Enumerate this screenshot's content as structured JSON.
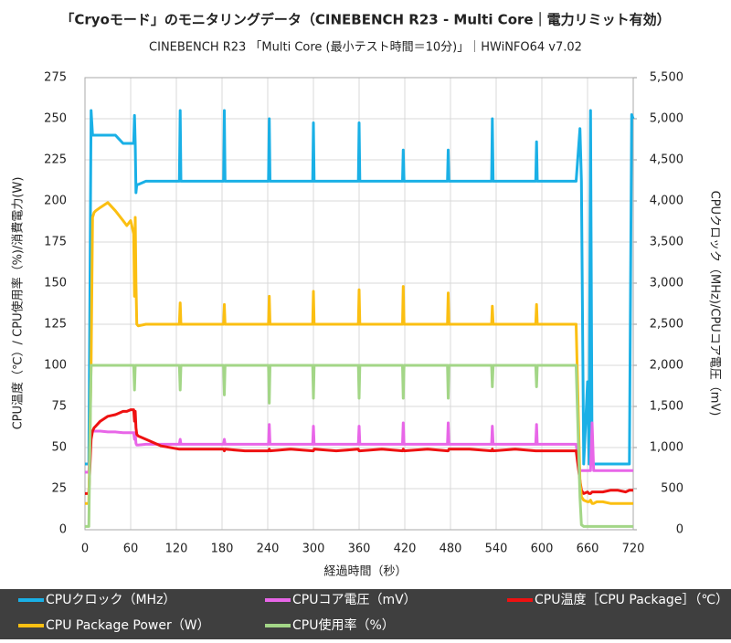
{
  "chart_data": {
    "type": "line",
    "title": "「Cryoモード」のモニタリングデータ（CINEBENCH R23 - Multi Core｜電力リミット有効）",
    "subtitle": "CINEBENCH R23 「Multi Core (最小テスト時間＝10分)」｜HWiNFO64 v7.02",
    "x_label": "経過時間（秒）",
    "y_label": "CPU温度（℃）/ CPU使用率（%)/消費電力(W)",
    "y2_label": "CPUクロック（MHz)/CPUコア電圧（mV)",
    "grid": true,
    "legend": "bottom",
    "x": [
      0,
      5,
      8,
      10,
      12,
      14,
      20,
      30,
      40,
      50,
      55,
      60,
      64,
      65,
      66,
      67,
      68,
      70,
      80,
      100,
      124,
      125,
      126,
      150,
      182,
      183,
      184,
      210,
      241,
      242,
      243,
      270,
      299,
      300,
      301,
      330,
      359,
      360,
      361,
      390,
      417,
      418,
      419,
      450,
      476,
      477,
      478,
      505,
      534,
      535,
      536,
      565,
      592,
      593,
      594,
      620,
      645,
      650,
      652,
      655,
      660,
      662,
      664,
      666,
      668,
      672,
      680,
      690,
      700,
      710,
      715,
      718,
      720
    ],
    "xlim": [
      0,
      720
    ],
    "xticks": [
      0,
      60,
      120,
      180,
      240,
      300,
      360,
      420,
      480,
      540,
      600,
      660,
      720
    ],
    "ylim": [
      0,
      275
    ],
    "yticks": [
      0,
      25,
      50,
      75,
      100,
      125,
      150,
      175,
      200,
      225,
      250,
      275
    ],
    "y2lim": [
      0,
      5500
    ],
    "y2ticks": [
      0,
      500,
      {
        "value": 1000,
        "label": "1,000"
      },
      {
        "value": 1500,
        "label": "1,500"
      },
      {
        "value": 2000,
        "label": "2,000"
      },
      {
        "value": 2500,
        "label": "2,500"
      },
      {
        "value": 3000,
        "label": "3,000"
      },
      {
        "value": 3500,
        "label": "3,500"
      },
      {
        "value": 4000,
        "label": "4,000"
      },
      {
        "value": 4500,
        "label": "4,500"
      },
      {
        "value": 5000,
        "label": "5,000"
      },
      {
        "value": 5500,
        "label": "5,500"
      }
    ],
    "series": [
      {
        "name": "CPUクロック（MHz）",
        "color": "#1ab0e6",
        "axis": "y2",
        "values": [
          800,
          800,
          5100,
          4800,
          4800,
          4800,
          4800,
          4800,
          4800,
          4700,
          4700,
          4700,
          4700,
          5040,
          4700,
          4100,
          4200,
          4200,
          4240,
          4240,
          4240,
          5100,
          4240,
          4240,
          4240,
          5100,
          4240,
          4240,
          4240,
          5000,
          4240,
          4240,
          4240,
          4950,
          4240,
          4240,
          4240,
          4950,
          4240,
          4240,
          4240,
          4620,
          4240,
          4240,
          4240,
          4620,
          4240,
          4240,
          4240,
          5000,
          4240,
          4240,
          4240,
          4720,
          4240,
          4240,
          4240,
          4880,
          4240,
          800,
          1800,
          800,
          5100,
          800,
          800,
          800,
          800,
          800,
          800,
          800,
          800,
          5050,
          5000
        ]
      },
      {
        "name": "CPUコア電圧（mV）",
        "color": "#e866e8",
        "axis": "y2",
        "values": [
          700,
          700,
          1200,
          1200,
          1200,
          1200,
          1200,
          1190,
          1190,
          1180,
          1180,
          1180,
          1180,
          1100,
          1180,
          1050,
          1030,
          1030,
          1040,
          1040,
          1040,
          1100,
          1040,
          1040,
          1040,
          1100,
          1040,
          1040,
          1040,
          1280,
          1040,
          1040,
          1040,
          1260,
          1040,
          1040,
          1040,
          1260,
          1040,
          1040,
          1040,
          1300,
          1040,
          1040,
          1040,
          1300,
          1040,
          1040,
          1040,
          1260,
          1040,
          1040,
          1040,
          1280,
          1040,
          1040,
          1040,
          720,
          720,
          720,
          720,
          720,
          720,
          1300,
          720,
          720,
          720,
          720,
          720,
          720,
          720,
          720,
          720
        ]
      },
      {
        "name": "CPU温度［CPU Package］（℃）",
        "color": "#ee1111",
        "values": [
          22,
          22,
          55,
          60,
          62,
          63,
          66,
          69,
          70,
          72,
          72,
          73,
          73,
          66,
          72,
          62,
          58,
          57,
          55,
          51,
          49,
          49,
          49,
          49,
          49,
          48,
          49,
          48,
          48,
          49,
          48,
          49,
          48,
          48,
          49,
          48,
          49,
          48,
          48,
          49,
          48,
          49,
          48,
          49,
          48,
          48,
          49,
          49,
          48,
          49,
          48,
          49,
          48,
          48,
          48,
          48,
          48,
          30,
          24,
          22,
          23,
          22,
          22,
          23,
          23,
          23,
          23,
          24,
          24,
          23,
          24,
          24,
          24
        ]
      },
      {
        "name": "CPU Package Power（W）",
        "color": "#fbbf12",
        "values": [
          16,
          16,
          100,
          190,
          193,
          194,
          196,
          199,
          194,
          188,
          185,
          188,
          180,
          142,
          190,
          150,
          125,
          124,
          125,
          125,
          125,
          138,
          125,
          125,
          125,
          137,
          125,
          125,
          125,
          142,
          125,
          125,
          125,
          145,
          125,
          125,
          125,
          146,
          125,
          125,
          125,
          148,
          125,
          125,
          125,
          144,
          125,
          125,
          125,
          136,
          125,
          125,
          125,
          137,
          125,
          125,
          125,
          30,
          20,
          18,
          17,
          17,
          18,
          16,
          16,
          17,
          17,
          16,
          16,
          16,
          16,
          16,
          16
        ]
      },
      {
        "name": "CPU使用率（%）",
        "color": "#a3d687",
        "values": [
          2,
          2,
          100,
          100,
          100,
          100,
          100,
          100,
          100,
          100,
          100,
          100,
          100,
          85,
          100,
          100,
          100,
          100,
          100,
          100,
          100,
          85,
          100,
          100,
          100,
          82,
          100,
          100,
          100,
          77,
          100,
          100,
          100,
          80,
          100,
          100,
          100,
          80,
          100,
          100,
          100,
          80,
          100,
          100,
          100,
          80,
          100,
          100,
          100,
          87,
          100,
          100,
          100,
          87,
          100,
          100,
          100,
          20,
          3,
          2,
          2,
          2,
          2,
          2,
          2,
          2,
          2,
          2,
          2,
          2,
          2,
          2,
          2
        ]
      }
    ]
  }
}
